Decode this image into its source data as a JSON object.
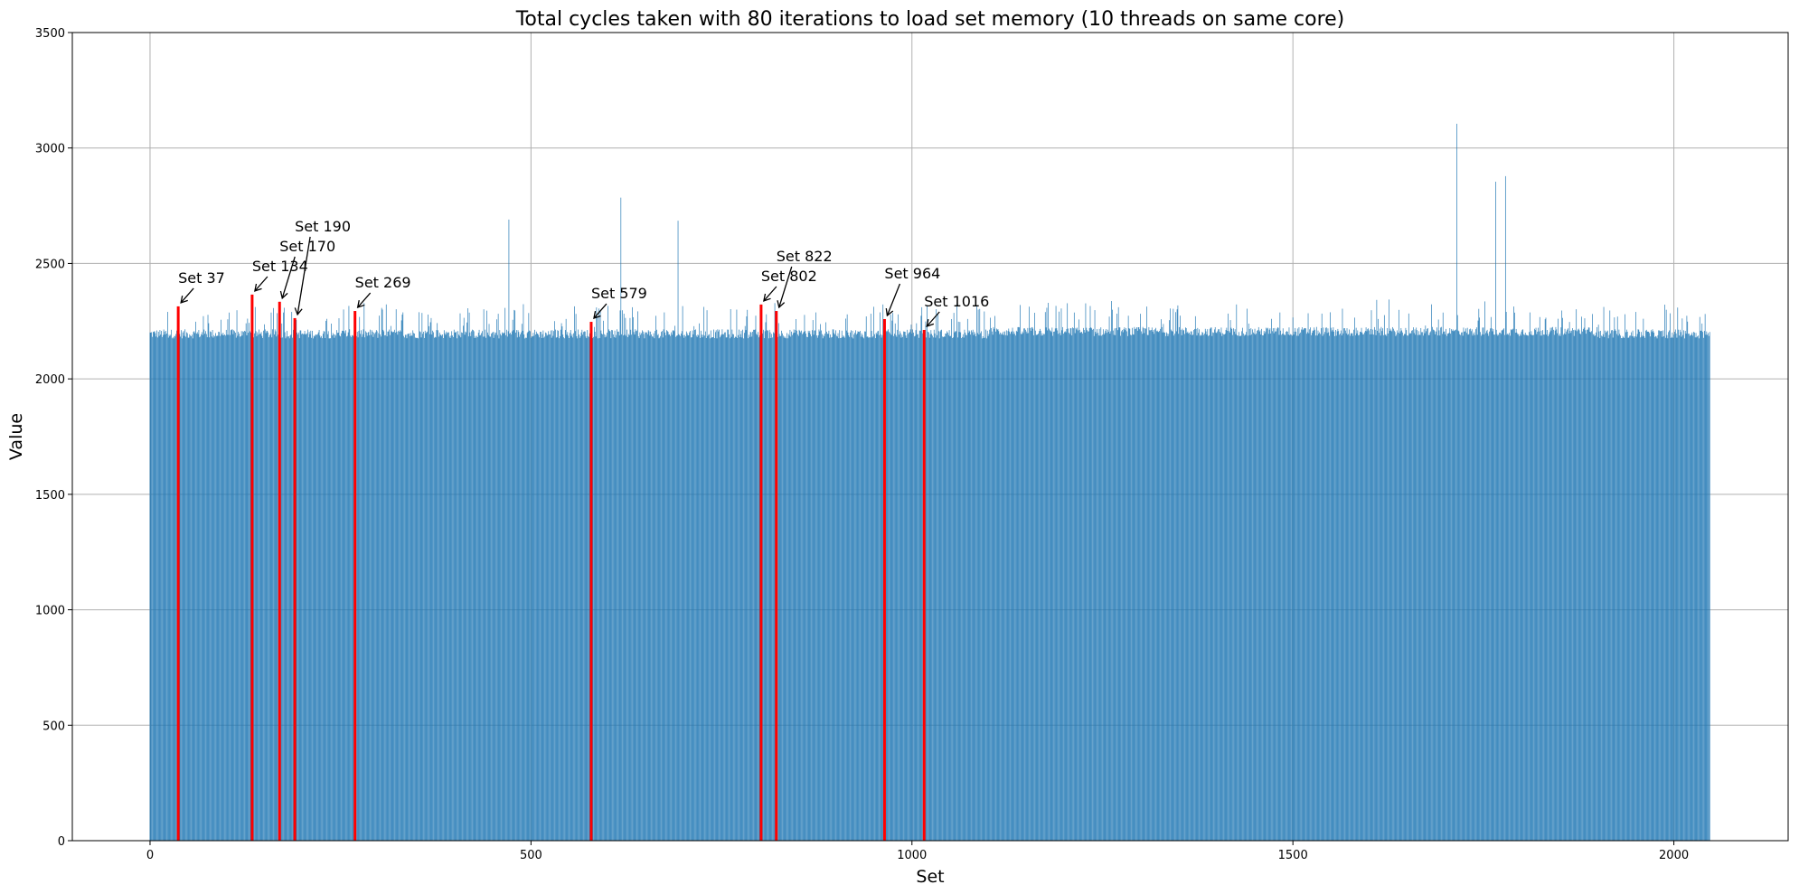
{
  "chart_data": {
    "type": "bar",
    "title": "Total cycles taken with 80 iterations to load set memory (10 threads on same core)",
    "xlabel": "Set",
    "ylabel": "Value",
    "xlim": [
      -102,
      2150
    ],
    "ylim": [
      0,
      3500
    ],
    "grid": true,
    "xticks": [
      0,
      500,
      1000,
      1500,
      2000
    ],
    "yticks": [
      0,
      500,
      1000,
      1500,
      2000,
      2500,
      3000,
      3500
    ],
    "n_sets": 2048,
    "baseline_note": "Most sets fall between about 2150 and 2250 cycles",
    "baseline_range": [
      2150,
      2250
    ],
    "bar_color": "#1f77b4",
    "highlight_color": "#ff0000",
    "spikes": [
      {
        "set": 471,
        "value": 2690
      },
      {
        "set": 618,
        "value": 2785
      },
      {
        "set": 693,
        "value": 2685
      },
      {
        "set": 1715,
        "value": 3105
      },
      {
        "set": 1766,
        "value": 2854
      },
      {
        "set": 1779,
        "value": 2878
      }
    ],
    "highlighted": [
      {
        "set": 37,
        "value": 2314,
        "label": "Set 37"
      },
      {
        "set": 134,
        "value": 2365,
        "label": "Set 134"
      },
      {
        "set": 170,
        "value": 2334,
        "label": "Set 170"
      },
      {
        "set": 190,
        "value": 2263,
        "label": "Set 190"
      },
      {
        "set": 269,
        "value": 2294,
        "label": "Set 269"
      },
      {
        "set": 579,
        "value": 2247,
        "label": "Set 579"
      },
      {
        "set": 802,
        "value": 2322,
        "label": "Set 802"
      },
      {
        "set": 822,
        "value": 2294,
        "label": "Set 822"
      },
      {
        "set": 964,
        "value": 2259,
        "label": "Set 964"
      },
      {
        "set": 1016,
        "value": 2212,
        "label": "Set 1016"
      }
    ]
  }
}
